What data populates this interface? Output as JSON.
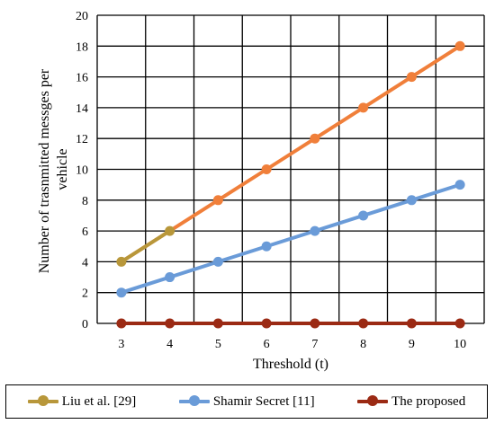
{
  "chart_data": {
    "type": "line",
    "x": [
      3,
      4,
      5,
      6,
      7,
      8,
      9,
      10
    ],
    "series": [
      {
        "name": "Liu et al. [29]",
        "values": [
          4,
          6,
          8,
          10,
          12,
          14,
          16,
          18
        ],
        "color": "#f07f3a",
        "legend_color": "#b8973a"
      },
      {
        "name": "Shamir Secret [11]",
        "values": [
          2,
          3,
          4,
          5,
          6,
          7,
          8,
          9
        ],
        "color": "#6a9bd8",
        "legend_color": "#6a9bd8"
      },
      {
        "name": "The proposed",
        "values": [
          0,
          0,
          0,
          0,
          0,
          0,
          0,
          0
        ],
        "color": "#9b2a14",
        "legend_color": "#9b2a14"
      }
    ],
    "title": "",
    "xlabel": "Threshold (t)",
    "ylabel_lines": [
      "Number of trasnmitted messges per",
      "vehicle"
    ],
    "xlim": [
      3,
      10
    ],
    "ylim": [
      0,
      20
    ],
    "yticks": [
      0,
      2,
      4,
      6,
      8,
      10,
      12,
      14,
      16,
      18,
      20
    ],
    "grid": true,
    "legend_position": "bottom"
  }
}
